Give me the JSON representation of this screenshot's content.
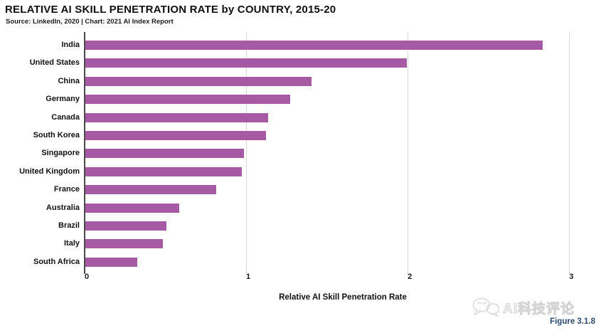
{
  "header": {
    "title": "RELATIVE AI SKILL PENETRATION RATE by COUNTRY, 2015-20",
    "source_line": "Source: LinkedIn, 2020 | Chart: 2021 AI Index Report"
  },
  "chart_data": {
    "type": "bar",
    "orientation": "horizontal",
    "title": "RELATIVE AI SKILL PENETRATION RATE by COUNTRY, 2015-20",
    "subtitle": "Source: LinkedIn, 2020 | Chart: 2021 AI Index Report",
    "categories": [
      "India",
      "United States",
      "China",
      "Germany",
      "Canada",
      "South Korea",
      "Singapore",
      "United Kingdom",
      "France",
      "Australia",
      "Brazil",
      "Italy",
      "South Africa"
    ],
    "values": [
      2.83,
      1.99,
      1.4,
      1.27,
      1.13,
      1.12,
      0.98,
      0.97,
      0.81,
      0.58,
      0.5,
      0.48,
      0.32
    ],
    "xlabel": "Relative AI Skill Penetration Rate",
    "ylabel": "",
    "x_ticks": [
      0,
      1,
      2,
      3
    ],
    "xlim": [
      0,
      3.1
    ],
    "grid": true,
    "legend": "none",
    "bar_color": "#a55aa3"
  },
  "colors": {
    "bar": "#a55aa3",
    "gridline": "#d9d9d9",
    "axis_line": "#4a4a4a",
    "tick": "#c9c9c9",
    "title_text": "#0f0f0f",
    "figure_label": "#2b4a6f",
    "watermark": "#d4d4d4"
  },
  "footer": {
    "watermark_text": "AI科技评论",
    "figure_label": "Figure 3.1.8"
  }
}
